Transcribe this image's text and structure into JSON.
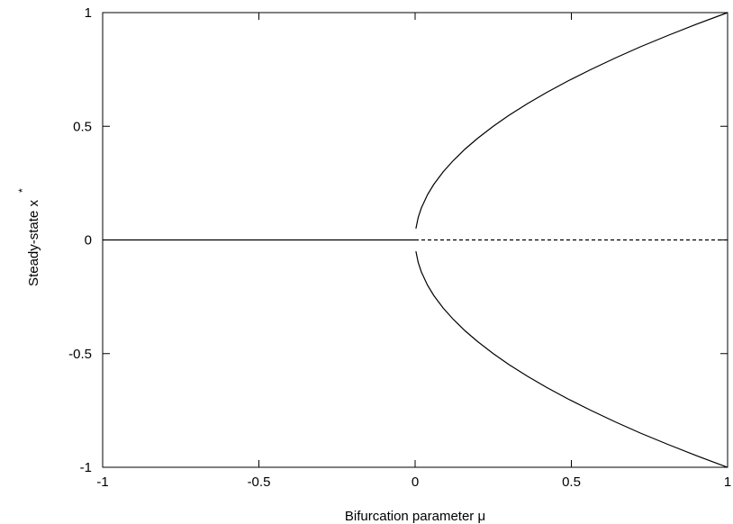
{
  "chart_data": {
    "type": "line",
    "title": "",
    "xlabel": "Bifurcation parameter μ",
    "ylabel": "Steady-state x",
    "ylabel_superscript": "*",
    "xlim": [
      -1,
      1
    ],
    "ylim": [
      -1,
      1
    ],
    "xticks": [
      -1,
      -0.5,
      0,
      0.5,
      1
    ],
    "xtick_labels": [
      "-1",
      "-0.5",
      "0",
      "0.5",
      "1"
    ],
    "yticks": [
      -1,
      -0.5,
      0,
      0.5,
      1
    ],
    "ytick_labels": [
      "-1",
      "-0.5",
      "0",
      "0.5",
      "1"
    ],
    "grid": false,
    "legend": "none",
    "line_color": "#000000",
    "series": [
      {
        "style": "solid",
        "x": [
          -1,
          -0.5,
          0
        ],
        "y": [
          0,
          0,
          0
        ]
      },
      {
        "style": "dashed",
        "x": [
          0,
          0.5,
          1
        ],
        "y": [
          0,
          0,
          0
        ]
      },
      {
        "style": "solid",
        "x": [
          0.0025,
          0.01,
          0.02,
          0.04,
          0.06,
          0.09,
          0.12,
          0.16,
          0.2,
          0.25,
          0.3,
          0.36,
          0.42,
          0.49,
          0.56,
          0.64,
          0.72,
          0.81,
          0.9,
          1.0
        ],
        "y": [
          0.05,
          0.1,
          0.141,
          0.2,
          0.245,
          0.3,
          0.346,
          0.4,
          0.447,
          0.5,
          0.548,
          0.6,
          0.648,
          0.7,
          0.748,
          0.8,
          0.849,
          0.9,
          0.949,
          1.0
        ]
      },
      {
        "style": "solid",
        "x": [
          0.0025,
          0.01,
          0.02,
          0.04,
          0.06,
          0.09,
          0.12,
          0.16,
          0.2,
          0.25,
          0.3,
          0.36,
          0.42,
          0.49,
          0.56,
          0.64,
          0.72,
          0.81,
          0.9,
          1.0
        ],
        "y": [
          -0.05,
          -0.1,
          -0.141,
          -0.2,
          -0.245,
          -0.3,
          -0.346,
          -0.4,
          -0.447,
          -0.5,
          -0.548,
          -0.6,
          -0.648,
          -0.7,
          -0.748,
          -0.8,
          -0.849,
          -0.9,
          -0.949,
          -1.0
        ]
      }
    ]
  }
}
